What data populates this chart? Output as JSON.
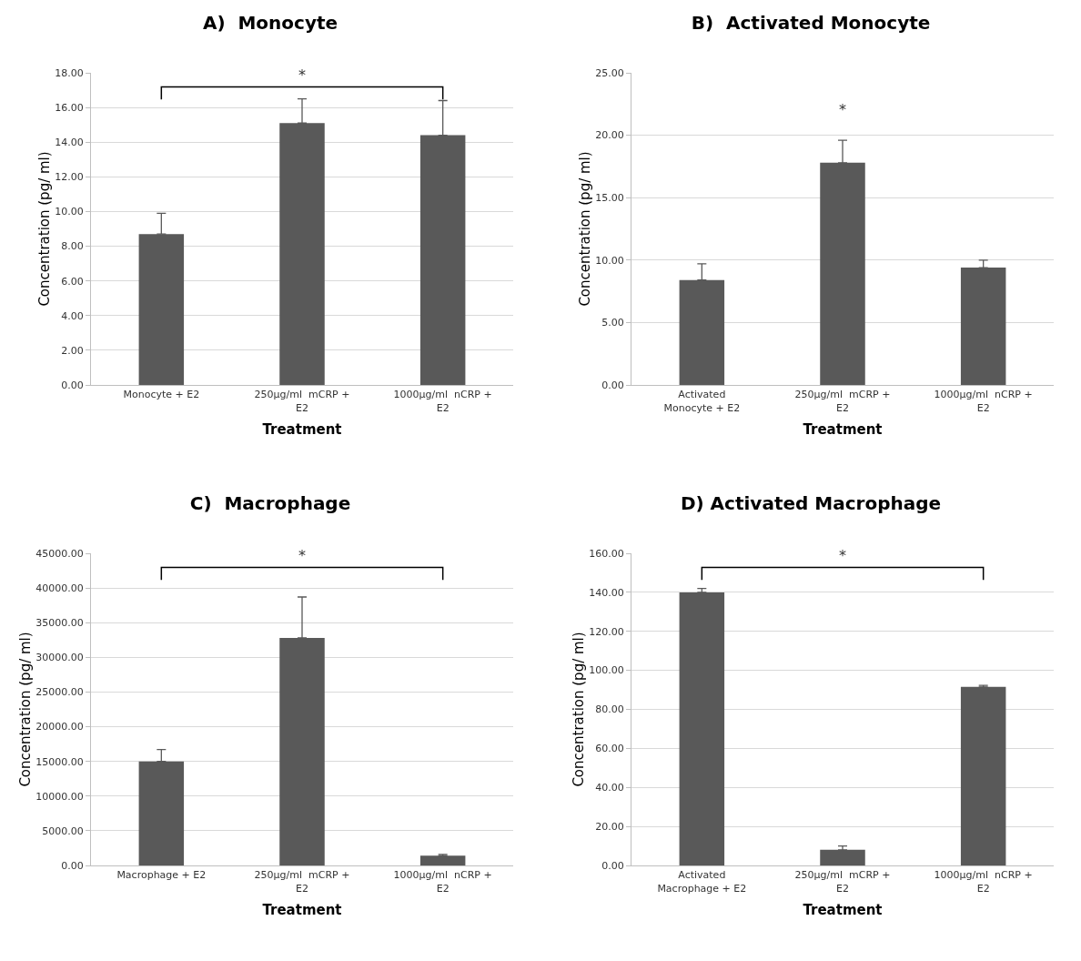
{
  "chart_data": [
    {
      "type": "bar",
      "title": "A)  Monocyte",
      "xlabel": "Treatment",
      "ylabel": "Concentration (pg/ ml)",
      "categories": [
        "Monocyte + E2",
        "250µg/ml  mCRP + E2",
        "1000µg/ml  nCRP + E2"
      ],
      "values": [
        8.7,
        15.1,
        14.4
      ],
      "errors": [
        [
          8.7,
          9.9
        ],
        [
          15.1,
          16.5
        ],
        [
          14.4,
          16.4
        ]
      ],
      "color": "#595959",
      "ylim": [
        0,
        18
      ],
      "yticks": [
        {
          "value": 0,
          "label": "0.00"
        },
        {
          "value": 2,
          "label": "2.00"
        },
        {
          "value": 4,
          "label": "4.00"
        },
        {
          "value": 6,
          "label": "6.00"
        },
        {
          "value": 8,
          "label": "8.00"
        },
        {
          "value": 10,
          "label": "10.00"
        },
        {
          "value": 12,
          "label": "12.00"
        },
        {
          "value": 14,
          "label": "14.00"
        },
        {
          "value": 16,
          "label": "16.00"
        },
        {
          "value": 18,
          "label": "18.00"
        }
      ],
      "grid": "y",
      "annotations": [
        "*"
      ]
    },
    {
      "type": "bar",
      "title": "B)  Activated Monocyte",
      "xlabel": "Treatment",
      "ylabel": "Concentration (pg/ ml)",
      "categories": [
        "Activated Monocyte + E2",
        "250µg/ml  mCRP + E2",
        "1000µg/ml  nCRP + E2"
      ],
      "values": [
        8.4,
        17.8,
        9.4
      ],
      "errors": [
        [
          8.4,
          9.7
        ],
        [
          17.8,
          19.6
        ],
        [
          9.4,
          10.0
        ]
      ],
      "color": "#595959",
      "ylim": [
        0,
        25
      ],
      "yticks": [
        {
          "value": 0,
          "label": "0.00"
        },
        {
          "value": 5,
          "label": "5.00"
        },
        {
          "value": 10,
          "label": "10.00"
        },
        {
          "value": 15,
          "label": "15.00"
        },
        {
          "value": 20,
          "label": "20.00"
        },
        {
          "value": 25,
          "label": "25.00"
        }
      ],
      "grid": "y",
      "annotations": [
        {
          "text": "*",
          "x": "250µg/ml  mCRP + E2",
          "y": 19.6
        }
      ]
    },
    {
      "type": "bar",
      "title": "C)  Macrophage",
      "xlabel": "Treatment",
      "ylabel": "Concentration (pg/ ml)",
      "categories": [
        "Macrophage + E2",
        "250µg/ml  mCRP + E2",
        "1000µg/ml  nCRP + E2"
      ],
      "values": [
        15000,
        32800,
        1400
      ],
      "errors": [
        [
          15000,
          16700
        ],
        [
          32800,
          38700
        ],
        [
          1400,
          1600
        ]
      ],
      "color": "#595959",
      "ylim": [
        0,
        45000
      ],
      "yticks": [
        {
          "value": 0,
          "label": "0.00"
        },
        {
          "value": 5000,
          "label": "5000.00"
        },
        {
          "value": 10000,
          "label": "10000.00"
        },
        {
          "value": 15000,
          "label": "15000.00"
        },
        {
          "value": 20000,
          "label": "20000.00"
        },
        {
          "value": 25000,
          "label": "25000.00"
        },
        {
          "value": 30000,
          "label": "30000.00"
        },
        {
          "value": 35000,
          "label": "35000.00"
        },
        {
          "value": 40000,
          "label": "40000.00"
        },
        {
          "value": 45000,
          "label": "45000.00"
        }
      ],
      "grid": "y",
      "annotations": [
        "*"
      ]
    },
    {
      "type": "bar",
      "title": "D) Activated Macrophage",
      "xlabel": "Treatment",
      "ylabel": "Concentration (pg/ ml)",
      "categories": [
        "Activated Macrophage + E2",
        "250µg/ml  mCRP + E2",
        "1000µg/ml  nCRP + E2"
      ],
      "values": [
        140,
        8,
        91.5
      ],
      "errors": [
        [
          140,
          142
        ],
        [
          8,
          10
        ],
        [
          91.5,
          92.3
        ]
      ],
      "color": "#595959",
      "ylim": [
        0,
        160
      ],
      "yticks": [
        {
          "value": 0,
          "label": "0.00"
        },
        {
          "value": 20,
          "label": "20.00"
        },
        {
          "value": 40,
          "label": "40.00"
        },
        {
          "value": 60,
          "label": "60.00"
        },
        {
          "value": 80,
          "label": "80.00"
        },
        {
          "value": 100,
          "label": "100.00"
        },
        {
          "value": 120,
          "label": "120.00"
        },
        {
          "value": 140,
          "label": "140.00"
        },
        {
          "value": 160,
          "label": "160.00"
        }
      ],
      "grid": "y",
      "annotations": [
        "*"
      ]
    }
  ]
}
